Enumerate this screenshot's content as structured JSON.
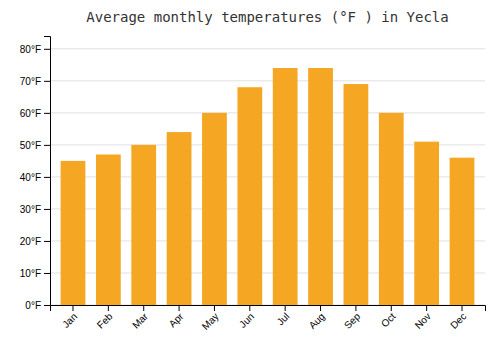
{
  "chart_data": {
    "type": "bar",
    "title": "Average monthly temperatures (°F ) in Yecla",
    "categories": [
      "Jan",
      "Feb",
      "Mar",
      "Apr",
      "May",
      "Jun",
      "Jul",
      "Aug",
      "Sep",
      "Oct",
      "Nov",
      "Dec"
    ],
    "values": [
      45,
      47,
      50,
      54,
      60,
      68,
      74,
      74,
      69,
      60,
      51,
      46
    ],
    "color": "#F5A623",
    "ylim": [
      0,
      84
    ],
    "yticks": [
      {
        "value": 0,
        "label": "0°F"
      },
      {
        "value": 10,
        "label": "10°F"
      },
      {
        "value": 20,
        "label": "20°F"
      },
      {
        "value": 30,
        "label": "30°F"
      },
      {
        "value": 40,
        "label": "40°F"
      },
      {
        "value": 50,
        "label": "50°F"
      },
      {
        "value": 60,
        "label": "60°F"
      },
      {
        "value": 70,
        "label": "70°F"
      },
      {
        "value": 80,
        "label": "80°F"
      }
    ],
    "grid": true
  }
}
